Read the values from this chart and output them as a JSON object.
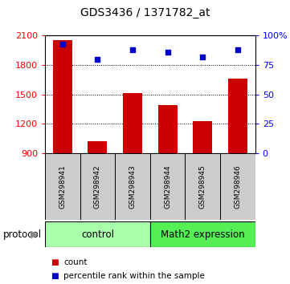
{
  "title": "GDS3436 / 1371782_at",
  "samples": [
    "GSM298941",
    "GSM298942",
    "GSM298943",
    "GSM298944",
    "GSM298945",
    "GSM298946"
  ],
  "counts": [
    2055,
    1025,
    1515,
    1395,
    1225,
    1665
  ],
  "percentiles": [
    93,
    80,
    88,
    86,
    82,
    88
  ],
  "ylim_left": [
    900,
    2100
  ],
  "ylim_right": [
    0,
    100
  ],
  "yticks_left": [
    900,
    1200,
    1500,
    1800,
    2100
  ],
  "yticks_right": [
    0,
    25,
    50,
    75,
    100
  ],
  "ytick_labels_right": [
    "0",
    "25",
    "50",
    "75",
    "100%"
  ],
  "bar_color": "#cc0000",
  "dot_color": "#0000cc",
  "control_label": "control",
  "math2_label": "Math2 expression",
  "protocol_label": "protocol",
  "legend_count": "count",
  "legend_percentile": "percentile rank within the sample",
  "control_color": "#aaffaa",
  "math2_color": "#55ee55",
  "sample_bg_color": "#cccccc",
  "n_control": 3,
  "n_math2": 3,
  "figsize": [
    3.61,
    3.54
  ],
  "dpi": 100
}
